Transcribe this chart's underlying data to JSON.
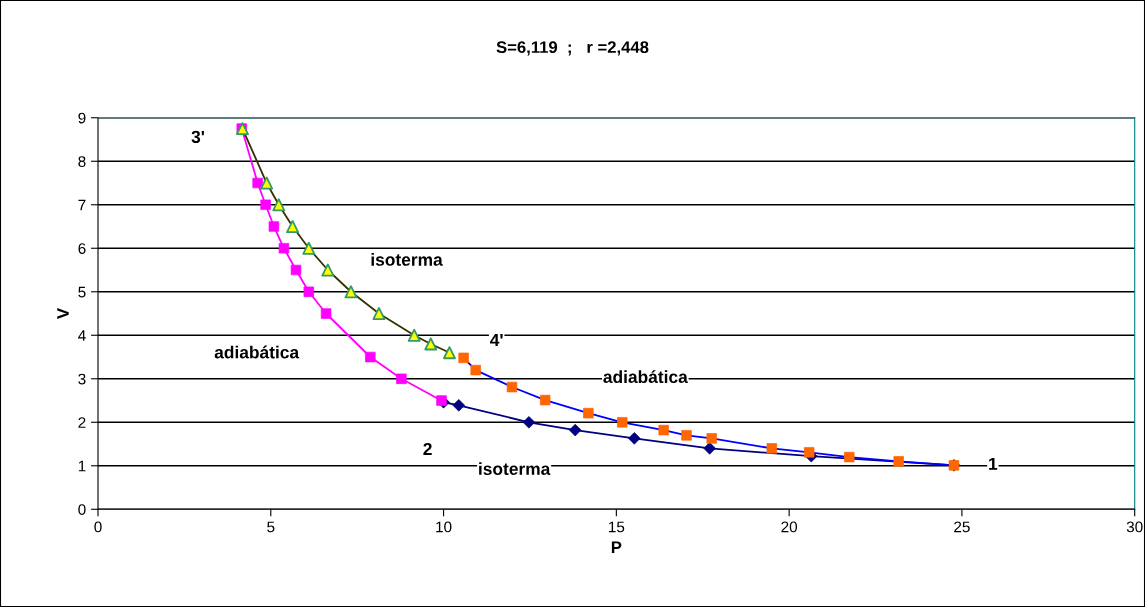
{
  "chart_data": {
    "type": "line",
    "title": "S=6,119  ;   r =2,448",
    "xlabel": "P",
    "ylabel": "V",
    "series": [
      {
        "color": "#000080",
        "marker": "diamond",
        "x": [
          10.0,
          10.44,
          12.47,
          13.81,
          15.52,
          17.7,
          20.64,
          24.77
        ],
        "values": [
          2.46,
          2.39,
          2.0,
          1.82,
          1.63,
          1.4,
          1.22,
          1.01
        ]
      },
      {
        "color": "#ff00ff",
        "marker": "square",
        "x": [
          4.16,
          4.62,
          4.85,
          5.09,
          5.38,
          5.73,
          6.1,
          6.6,
          7.88,
          8.78,
          9.94
        ],
        "values": [
          8.75,
          7.5,
          7.0,
          6.5,
          6.0,
          5.5,
          5.0,
          4.5,
          3.5,
          3.0,
          2.5
        ]
      },
      {
        "color": "#333300",
        "colors": [
          "#ffff00",
          "#ffff00",
          "#ffff00",
          "#ffff00",
          "#ffff00",
          "#ffff00",
          "#ffff00",
          "#ffff00",
          "#ffff00",
          "#ffff00",
          "#ffff00"
        ],
        "marker": "triangle",
        "x": [
          4.18,
          4.88,
          5.23,
          5.63,
          6.1,
          6.65,
          7.32,
          8.13,
          9.15,
          9.63,
          10.17
        ],
        "values": [
          8.75,
          7.5,
          7.0,
          6.5,
          6.0,
          5.5,
          5.0,
          4.5,
          4.0,
          3.8,
          3.6
        ]
      },
      {
        "color": "#0000ff",
        "colors": [
          "#ff6600",
          "#ff6600",
          "#ff6600",
          "#ff6600",
          "#ff6600",
          "#ff6600",
          "#ff6600",
          "#ff6600",
          "#ff6600",
          "#ff6600",
          "#ff6600",
          "#ff6600",
          "#ff6600",
          "#ff6600"
        ],
        "marker": "square",
        "x": [
          10.58,
          10.93,
          11.98,
          12.94,
          14.19,
          15.17,
          16.37,
          17.03,
          17.76,
          19.5,
          20.58,
          21.74,
          23.17,
          24.77
        ],
        "values": [
          3.48,
          3.2,
          2.81,
          2.51,
          2.21,
          2.0,
          1.82,
          1.7,
          1.63,
          1.4,
          1.31,
          1.2,
          1.1,
          1.01
        ]
      }
    ],
    "annotations": [
      {
        "text": "3'",
        "x": 4.18,
        "y": 8.75
      },
      {
        "text": "isoterma",
        "x": 7.32,
        "y": 5.0
      },
      {
        "text": "adiabática",
        "x": 6.6,
        "y": 4.5
      },
      {
        "text": "4'",
        "x": 10.17,
        "y": 3.6
      },
      {
        "text": "adiabática",
        "x": 14.19,
        "y": 2.21
      },
      {
        "text": "2",
        "x": 9.94,
        "y": 2.5
      },
      {
        "text": "isoterma",
        "x": 13.81,
        "y": 1.82
      },
      {
        "text": "1",
        "x": 24.77,
        "y": 1.01
      }
    ],
    "xlim": [
      0,
      30
    ],
    "xticks": [
      0,
      5,
      10,
      15,
      20,
      25,
      30
    ],
    "ylim": [
      0,
      9
    ],
    "yticks": [
      0,
      1,
      2,
      3,
      4,
      5,
      6,
      7,
      8,
      9
    ],
    "grid": "y",
    "legend": false
  }
}
